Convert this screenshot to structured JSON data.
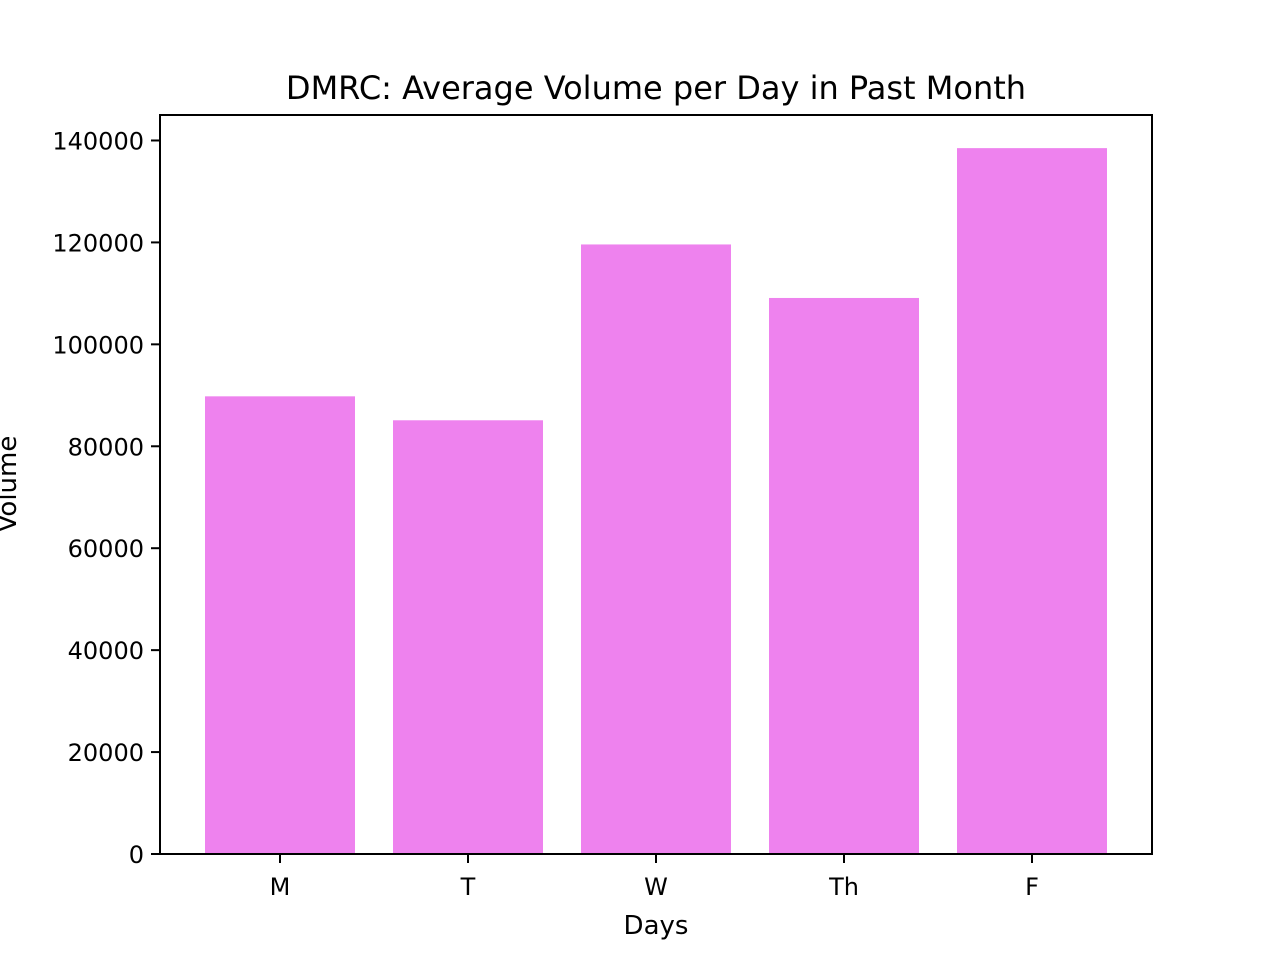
{
  "chart_data": {
    "type": "bar",
    "title": "DMRC: Average Volume per Day in Past Month",
    "xlabel": "Days",
    "ylabel": "Volume",
    "categories": [
      "M",
      "T",
      "W",
      "Th",
      "F"
    ],
    "values": [
      89800,
      85100,
      119600,
      109100,
      138500
    ],
    "ylim": [
      0,
      145000
    ],
    "yticks": [
      0,
      20000,
      40000,
      60000,
      80000,
      100000,
      120000,
      140000
    ],
    "bar_color": "#ee82ee",
    "grid": false,
    "legend": "none"
  }
}
